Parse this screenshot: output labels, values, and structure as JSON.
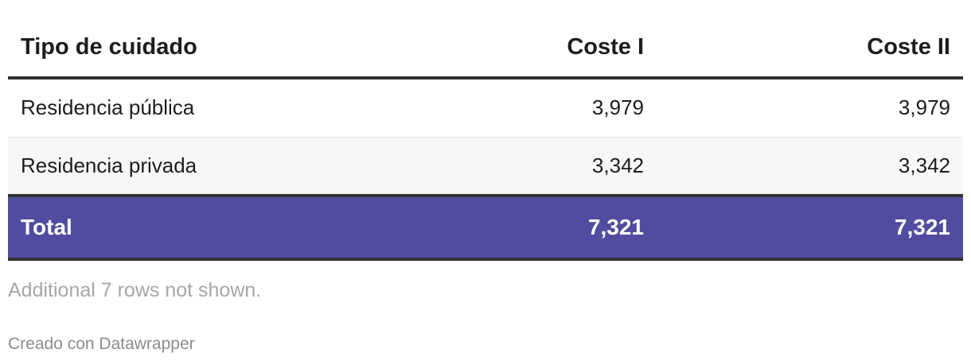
{
  "chart_data": {
    "type": "table",
    "columns": [
      "Tipo de cuidado",
      "Coste I",
      "Coste II"
    ],
    "rows": [
      {
        "label": "Residencia pública",
        "values": [
          "3,979",
          "3,979"
        ]
      },
      {
        "label": "Residencia privada",
        "values": [
          "3,342",
          "3,342"
        ]
      }
    ],
    "total": {
      "label": "Total",
      "values": [
        "7,321",
        "7,321"
      ]
    },
    "highlight_color": "#514c9f",
    "note": "Additional 7 rows not shown.",
    "credit": "Creado con Datawrapper"
  }
}
